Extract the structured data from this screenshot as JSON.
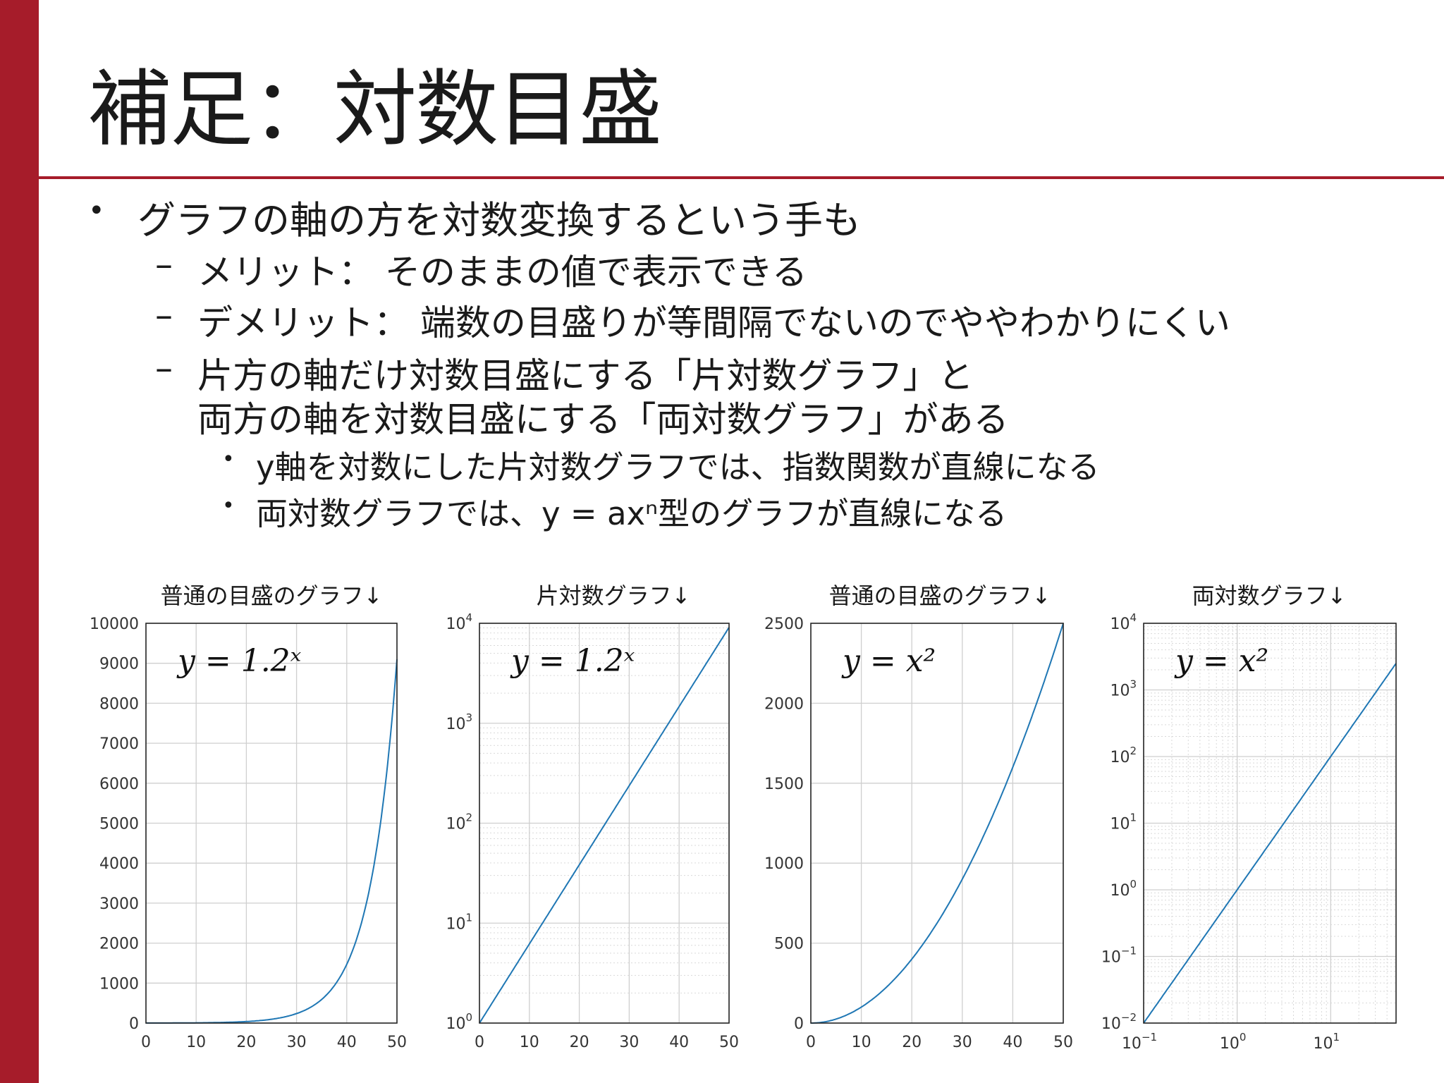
{
  "slide": {
    "title": "補足：対数目盛",
    "bullets": [
      {
        "level": 1,
        "text": "グラフの軸の方を対数変換するという手も"
      },
      {
        "level": 2,
        "text": "メリット： そのままの値で表示できる"
      },
      {
        "level": 2,
        "text": "デメリット： 端数の目盛りが等間隔でないのでややわかりにくい"
      },
      {
        "level": 2,
        "text": "片方の軸だけ対数目盛にする「片対数グラフ」と"
      },
      {
        "level": 2,
        "text": "両方の軸を対数目盛にする「両対数グラフ」がある",
        "continuation": true
      },
      {
        "level": 3,
        "text": "y軸を対数にした片対数グラフでは、指数関数が直線になる"
      },
      {
        "level": 3,
        "text": "両対数グラフでは、y = axⁿ型のグラフが直線になる"
      }
    ],
    "colors": {
      "accent": "#a61c2a",
      "line": "#1f77b4"
    }
  },
  "chart_data": [
    {
      "type": "line",
      "title": "普通の目盛のグラフ↓",
      "annotation": "y = 1.2ˣ",
      "xscale": "linear",
      "yscale": "linear",
      "xlim": [
        0,
        50
      ],
      "ylim": [
        0,
        10000
      ],
      "xticks": [
        0,
        10,
        20,
        30,
        40,
        50
      ],
      "yticks": [
        0,
        1000,
        2000,
        3000,
        4000,
        5000,
        6000,
        7000,
        8000,
        9000,
        10000
      ],
      "grid": true,
      "series": [
        {
          "function": "1.2^x",
          "x_range": [
            0,
            50
          ],
          "values_at_ticks": {
            "0": 1,
            "10": 6.19,
            "20": 38.3,
            "30": 237.4,
            "40": 1469.8,
            "50": 9100.4
          }
        }
      ]
    },
    {
      "type": "line",
      "title": "片対数グラフ↓",
      "annotation": "y = 1.2ˣ",
      "xscale": "linear",
      "yscale": "log",
      "xlim": [
        0,
        50
      ],
      "ylim": [
        1,
        10000
      ],
      "xticks": [
        0,
        10,
        20,
        30,
        40,
        50
      ],
      "yticks": [
        1,
        10,
        100,
        1000,
        10000
      ],
      "ytick_exponents": [
        "0",
        "1",
        "2",
        "3",
        "4"
      ],
      "grid": true,
      "minor_grid": true,
      "series": [
        {
          "function": "1.2^x",
          "x_range": [
            0,
            50
          ],
          "values_at_ticks": {
            "0": 1,
            "10": 6.19,
            "20": 38.3,
            "30": 237.4,
            "40": 1469.8,
            "50": 9100.4
          }
        }
      ]
    },
    {
      "type": "line",
      "title": "普通の目盛のグラフ↓",
      "annotation": "y = x²",
      "xscale": "linear",
      "yscale": "linear",
      "xlim": [
        0,
        50
      ],
      "ylim": [
        0,
        2500
      ],
      "xticks": [
        0,
        10,
        20,
        30,
        40,
        50
      ],
      "yticks": [
        0,
        500,
        1000,
        1500,
        2000,
        2500
      ],
      "grid": true,
      "series": [
        {
          "function": "x^2",
          "x_range": [
            0,
            50
          ],
          "values_at_ticks": {
            "0": 0,
            "10": 100,
            "20": 400,
            "30": 900,
            "40": 1600,
            "50": 2500
          }
        }
      ]
    },
    {
      "type": "line",
      "title": "両対数グラフ↓",
      "annotation": "y = x²",
      "xscale": "log",
      "yscale": "log",
      "xlim": [
        0.1,
        50
      ],
      "ylim": [
        0.01,
        10000
      ],
      "xticks": [
        0.1,
        1,
        10
      ],
      "xtick_exponents": [
        "−1",
        "0",
        "1"
      ],
      "yticks": [
        0.01,
        0.1,
        1,
        10,
        100,
        1000,
        10000
      ],
      "ytick_exponents": [
        "−2",
        "−1",
        "0",
        "1",
        "2",
        "3",
        "4"
      ],
      "grid": true,
      "minor_grid": true,
      "series": [
        {
          "function": "x^2",
          "x_range": [
            0.1,
            50
          ],
          "values_at_ticks": {
            "0.1": 0.01,
            "1": 1,
            "10": 100,
            "50": 2500
          }
        }
      ]
    }
  ]
}
